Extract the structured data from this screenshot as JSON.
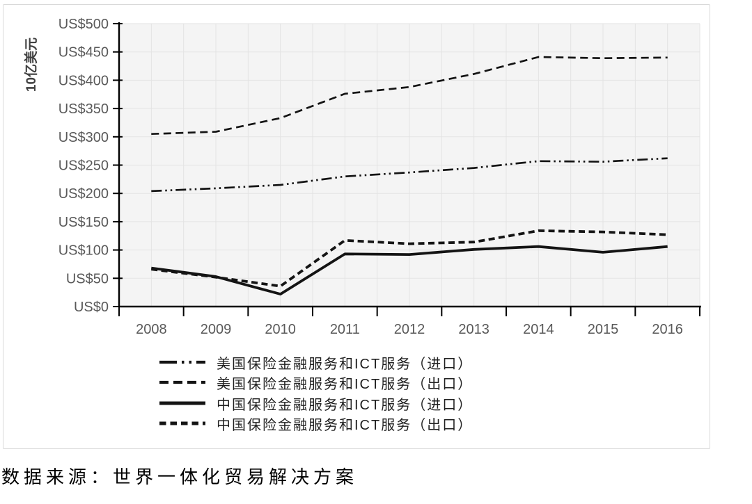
{
  "chart_data": {
    "type": "line",
    "title": "",
    "categories": [
      "2008",
      "2009",
      "2010",
      "2011",
      "2012",
      "2013",
      "2014",
      "2015",
      "2016"
    ],
    "xlabel": "",
    "ylabel": "10亿美元",
    "y_tick_prefix": "US$",
    "ylim": [
      0,
      500
    ],
    "y_tick_step": 50,
    "grid": true,
    "x_minor_gridlines_per_interval": 2,
    "legend_position": "bottom-left",
    "series": [
      {
        "key": "us-imports",
        "name": "美国保险金融服务和ICT服务（进口）",
        "line_style": "dash-dot-dot",
        "line_weight": "medium",
        "values": [
          204,
          209,
          215,
          230,
          237,
          245,
          257,
          256,
          262
        ]
      },
      {
        "key": "us-exports",
        "name": "美国保险金融服务和ICT服务（出口）",
        "line_style": "dashed",
        "line_weight": "medium",
        "values": [
          305,
          309,
          333,
          376,
          388,
          411,
          441,
          439,
          440
        ]
      },
      {
        "key": "cn-imports",
        "name": "中国保险金融服务和ICT服务（进口）",
        "line_style": "solid",
        "line_weight": "thick",
        "values": [
          68,
          53,
          22,
          93,
          92,
          101,
          106,
          96,
          106
        ]
      },
      {
        "key": "cn-exports",
        "name": "中国保险金融服务和ICT服务（出口）",
        "line_style": "dashed-dense",
        "line_weight": "thick",
        "values": [
          66,
          52,
          36,
          117,
          111,
          114,
          134,
          132,
          127
        ]
      }
    ]
  },
  "source_note": "数据来源：世界一体化贸易解决方案",
  "colors": {
    "line": "#141414",
    "axis": "#000000",
    "grid": "#e3e3e3",
    "plot-bg": "#f4f4f4",
    "tick-label": "#595959",
    "axis-title": "#404040",
    "legend-text": "#1f1f1f",
    "source-text": "#000000",
    "card-border": "#d9d9d9"
  }
}
